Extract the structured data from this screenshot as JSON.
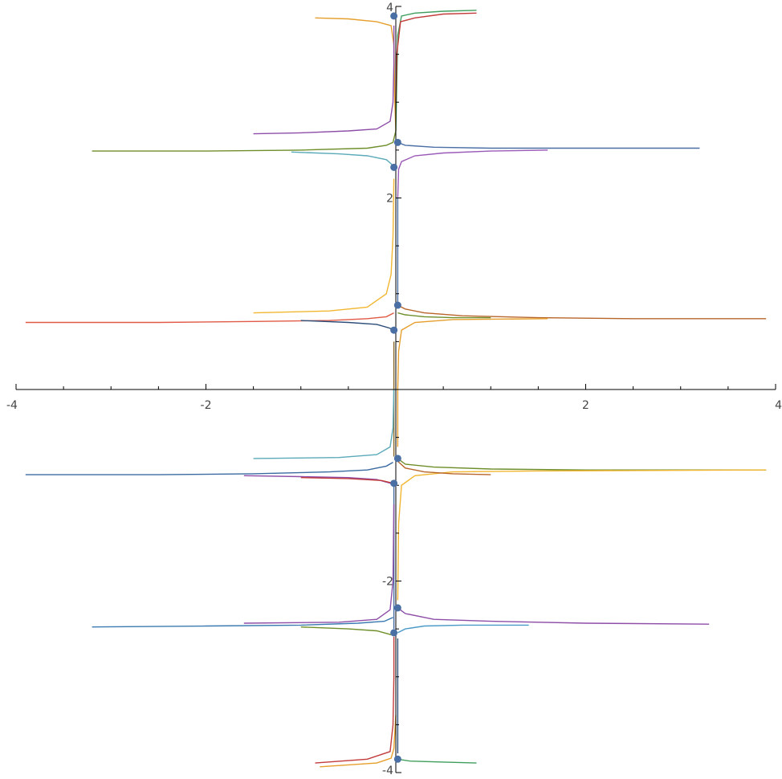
{
  "chart_data": {
    "type": "line",
    "title": "",
    "xlabel": "",
    "ylabel": "",
    "xlim": [
      -4,
      4
    ],
    "ylim": [
      -4,
      4
    ],
    "grid": false,
    "legend": "none",
    "x_ticks": [
      {
        "value": -4,
        "label": "-4"
      },
      {
        "value": -2,
        "label": "-2"
      },
      {
        "value": 2,
        "label": "2"
      },
      {
        "value": 4,
        "label": "4"
      }
    ],
    "y_ticks": [
      {
        "value": 4,
        "label": "4"
      },
      {
        "value": 2,
        "label": "2"
      },
      {
        "value": -2,
        "label": "-2"
      },
      {
        "value": -4,
        "label": "-4"
      }
    ],
    "point_color": "#4a6fa5",
    "points": [
      {
        "x": -0.02,
        "y": 3.9
      },
      {
        "x": 0.02,
        "y": 2.58
      },
      {
        "x": -0.02,
        "y": 2.32
      },
      {
        "x": 0.02,
        "y": 0.88
      },
      {
        "x": -0.02,
        "y": 0.62
      },
      {
        "x": 0.02,
        "y": -0.72
      },
      {
        "x": -0.02,
        "y": -0.98
      },
      {
        "x": 0.02,
        "y": -2.28
      },
      {
        "x": -0.02,
        "y": -2.54
      },
      {
        "x": 0.02,
        "y": -3.86
      }
    ],
    "series": [
      {
        "color": "#e69f2c",
        "points": [
          [
            -0.85,
            3.88
          ],
          [
            -0.5,
            3.87
          ],
          [
            -0.2,
            3.84
          ],
          [
            -0.05,
            3.8
          ],
          [
            -0.02,
            3.6
          ],
          [
            -0.01,
            3.0
          ],
          [
            0,
            2.7
          ]
        ]
      },
      {
        "color": "#3f9e5d",
        "points": [
          [
            0.85,
            3.96
          ],
          [
            0.5,
            3.95
          ],
          [
            0.2,
            3.93
          ],
          [
            0.06,
            3.9
          ],
          [
            0.02,
            3.7
          ],
          [
            0.01,
            3.2
          ],
          [
            0,
            2.7
          ]
        ]
      },
      {
        "color": "#c23a3a",
        "points": [
          [
            0.85,
            3.93
          ],
          [
            0.5,
            3.92
          ],
          [
            0.2,
            3.88
          ],
          [
            0.05,
            3.84
          ],
          [
            0.01,
            3.5
          ],
          [
            0,
            3.0
          ]
        ]
      },
      {
        "color": "#8e4ea8",
        "points": [
          [
            -0.02,
            3.8
          ],
          [
            -0.02,
            3.4
          ],
          [
            -0.03,
            3.0
          ],
          [
            -0.06,
            2.8
          ],
          [
            -0.2,
            2.72
          ],
          [
            -0.5,
            2.7
          ],
          [
            -1.0,
            2.68
          ],
          [
            -1.5,
            2.67
          ]
        ]
      },
      {
        "color": "#6e8e2a",
        "points": [
          [
            -3.2,
            2.49
          ],
          [
            -2.0,
            2.49
          ],
          [
            -1.0,
            2.5
          ],
          [
            -0.3,
            2.52
          ],
          [
            -0.1,
            2.55
          ],
          [
            -0.03,
            2.58
          ],
          [
            0,
            2.7
          ]
        ]
      },
      {
        "color": "#4a6fa5",
        "points": [
          [
            0.02,
            2.58
          ],
          [
            0.1,
            2.55
          ],
          [
            0.4,
            2.53
          ],
          [
            1.0,
            2.52
          ],
          [
            2.0,
            2.52
          ],
          [
            3.2,
            2.52
          ]
        ]
      },
      {
        "color": "#5aaab8",
        "points": [
          [
            -1.1,
            2.48
          ],
          [
            -0.6,
            2.46
          ],
          [
            -0.3,
            2.44
          ],
          [
            -0.1,
            2.4
          ],
          [
            -0.03,
            2.34
          ]
        ]
      },
      {
        "color": "#9a5ab8",
        "points": [
          [
            0.02,
            2.0
          ],
          [
            0.03,
            2.3
          ],
          [
            0.06,
            2.38
          ],
          [
            0.2,
            2.44
          ],
          [
            0.5,
            2.47
          ],
          [
            1.0,
            2.49
          ],
          [
            1.6,
            2.5
          ]
        ]
      },
      {
        "color": "#4a6fa5",
        "points": [
          [
            0.02,
            2.0
          ],
          [
            0.02,
            1.6
          ],
          [
            0.02,
            1.2
          ],
          [
            0.02,
            0.9
          ]
        ]
      },
      {
        "color": "#f2b630",
        "points": [
          [
            -0.02,
            2.2
          ],
          [
            -0.03,
            1.6
          ],
          [
            -0.05,
            1.2
          ],
          [
            -0.1,
            1.0
          ],
          [
            -0.3,
            0.86
          ],
          [
            -0.7,
            0.82
          ],
          [
            -1.5,
            0.8
          ]
        ]
      },
      {
        "color": "#e05a45",
        "points": [
          [
            -3.9,
            0.7
          ],
          [
            -2.5,
            0.7
          ],
          [
            -1.5,
            0.71
          ],
          [
            -0.7,
            0.72
          ],
          [
            -0.3,
            0.74
          ],
          [
            -0.1,
            0.76
          ],
          [
            -0.02,
            0.8
          ]
        ]
      },
      {
        "color": "#2e4e7a",
        "points": [
          [
            -1.0,
            0.72
          ],
          [
            -0.5,
            0.7
          ],
          [
            -0.2,
            0.68
          ],
          [
            -0.06,
            0.64
          ],
          [
            -0.02,
            0.6
          ]
        ]
      },
      {
        "color": "#b8652a",
        "points": [
          [
            0.02,
            0.88
          ],
          [
            0.1,
            0.84
          ],
          [
            0.3,
            0.8
          ],
          [
            0.7,
            0.77
          ],
          [
            1.5,
            0.75
          ],
          [
            2.5,
            0.74
          ],
          [
            3.9,
            0.74
          ]
        ]
      },
      {
        "color": "#6e8e2a",
        "points": [
          [
            0.02,
            0.8
          ],
          [
            0.1,
            0.78
          ],
          [
            0.3,
            0.76
          ],
          [
            0.6,
            0.75
          ],
          [
            1.0,
            0.75
          ]
        ]
      },
      {
        "color": "#e69f2c",
        "points": [
          [
            0.02,
            -0.6
          ],
          [
            0.02,
            0.0
          ],
          [
            0.03,
            0.4
          ],
          [
            0.06,
            0.62
          ],
          [
            0.2,
            0.7
          ],
          [
            0.6,
            0.73
          ],
          [
            1.6,
            0.74
          ]
        ]
      },
      {
        "color": "#8a6a2a",
        "points": [
          [
            -0.02,
            0.5
          ],
          [
            -0.02,
            0.0
          ],
          [
            -0.02,
            -0.5
          ],
          [
            -0.02,
            -0.7
          ]
        ]
      },
      {
        "color": "#5aaab8",
        "points": [
          [
            -0.02,
            0.0
          ],
          [
            -0.03,
            -0.4
          ],
          [
            -0.06,
            -0.6
          ],
          [
            -0.2,
            -0.68
          ],
          [
            -0.6,
            -0.71
          ],
          [
            -1.5,
            -0.72
          ]
        ]
      },
      {
        "color": "#3a6aa0",
        "points": [
          [
            -3.9,
            -0.89
          ],
          [
            -2.5,
            -0.89
          ],
          [
            -1.5,
            -0.88
          ],
          [
            -0.7,
            -0.86
          ],
          [
            -0.3,
            -0.84
          ],
          [
            -0.1,
            -0.8
          ],
          [
            -0.03,
            -0.76
          ]
        ]
      },
      {
        "color": "#6e8e2a",
        "points": [
          [
            0.02,
            -0.72
          ],
          [
            0.1,
            -0.78
          ],
          [
            0.4,
            -0.81
          ],
          [
            1.0,
            -0.83
          ],
          [
            2.0,
            -0.84
          ],
          [
            3.9,
            -0.84
          ]
        ]
      },
      {
        "color": "#8e4ea8",
        "points": [
          [
            -1.6,
            -0.9
          ],
          [
            -1.0,
            -0.91
          ],
          [
            -0.5,
            -0.92
          ],
          [
            -0.2,
            -0.94
          ],
          [
            -0.05,
            -0.98
          ]
        ]
      },
      {
        "color": "#c23a3a",
        "points": [
          [
            -1.0,
            -0.92
          ],
          [
            -0.5,
            -0.93
          ],
          [
            -0.15,
            -0.95
          ],
          [
            -0.02,
            -0.98
          ]
        ]
      },
      {
        "color": "#f2b630",
        "points": [
          [
            0.02,
            -2.2
          ],
          [
            0.03,
            -1.4
          ],
          [
            0.06,
            -1.0
          ],
          [
            0.2,
            -0.9
          ],
          [
            0.6,
            -0.86
          ],
          [
            1.5,
            -0.85
          ],
          [
            3.9,
            -0.84
          ]
        ]
      },
      {
        "color": "#b8652a",
        "points": [
          [
            0.02,
            -0.75
          ],
          [
            0.1,
            -0.82
          ],
          [
            0.3,
            -0.86
          ],
          [
            0.6,
            -0.88
          ],
          [
            1.0,
            -0.89
          ]
        ]
      },
      {
        "color": "#4a6fa5",
        "points": [
          [
            -0.02,
            -1.0
          ],
          [
            -0.02,
            -1.6
          ],
          [
            -0.02,
            -2.2
          ],
          [
            -0.02,
            -2.5
          ]
        ]
      },
      {
        "color": "#8e4ea8",
        "points": [
          [
            -0.02,
            -1.2
          ],
          [
            -0.03,
            -2.0
          ],
          [
            -0.06,
            -2.3
          ],
          [
            -0.2,
            -2.4
          ],
          [
            -0.6,
            -2.43
          ],
          [
            -1.6,
            -2.44
          ]
        ]
      },
      {
        "color": "#3a7ab0",
        "points": [
          [
            -3.2,
            -2.48
          ],
          [
            -2.0,
            -2.47
          ],
          [
            -1.0,
            -2.46
          ],
          [
            -0.4,
            -2.44
          ],
          [
            -0.12,
            -2.42
          ],
          [
            -0.03,
            -2.38
          ]
        ]
      },
      {
        "color": "#6e8e2a",
        "points": [
          [
            -1.0,
            -2.48
          ],
          [
            -0.5,
            -2.5
          ],
          [
            -0.2,
            -2.52
          ],
          [
            -0.05,
            -2.56
          ]
        ]
      },
      {
        "color": "#8e4ea8",
        "points": [
          [
            0.02,
            -2.28
          ],
          [
            0.1,
            -2.34
          ],
          [
            0.4,
            -2.4
          ],
          [
            1.0,
            -2.42
          ],
          [
            2.0,
            -2.44
          ],
          [
            3.3,
            -2.45
          ]
        ]
      },
      {
        "color": "#4a9ac8",
        "points": [
          [
            0.02,
            -2.54
          ],
          [
            0.1,
            -2.5
          ],
          [
            0.3,
            -2.47
          ],
          [
            0.7,
            -2.46
          ],
          [
            1.4,
            -2.46
          ]
        ]
      },
      {
        "color": "#c23a3a",
        "points": [
          [
            -0.02,
            -2.58
          ],
          [
            -0.02,
            -3.0
          ],
          [
            -0.03,
            -3.5
          ],
          [
            -0.06,
            -3.78
          ],
          [
            -0.3,
            -3.86
          ],
          [
            -0.85,
            -3.9
          ]
        ]
      },
      {
        "color": "#e69f2c",
        "points": [
          [
            0,
            -3.4
          ],
          [
            -0.02,
            -3.75
          ],
          [
            -0.05,
            -3.85
          ],
          [
            -0.2,
            -3.9
          ],
          [
            -0.8,
            -3.94
          ]
        ]
      },
      {
        "color": "#3f9e5d",
        "points": [
          [
            0.02,
            -3.86
          ],
          [
            0.15,
            -3.88
          ],
          [
            0.5,
            -3.89
          ],
          [
            0.85,
            -3.9
          ]
        ]
      },
      {
        "color": "#2e4e7a",
        "points": [
          [
            0.02,
            -2.6
          ],
          [
            0.02,
            -3.0
          ],
          [
            0.02,
            -3.4
          ],
          [
            0.02,
            -3.8
          ]
        ]
      }
    ]
  }
}
